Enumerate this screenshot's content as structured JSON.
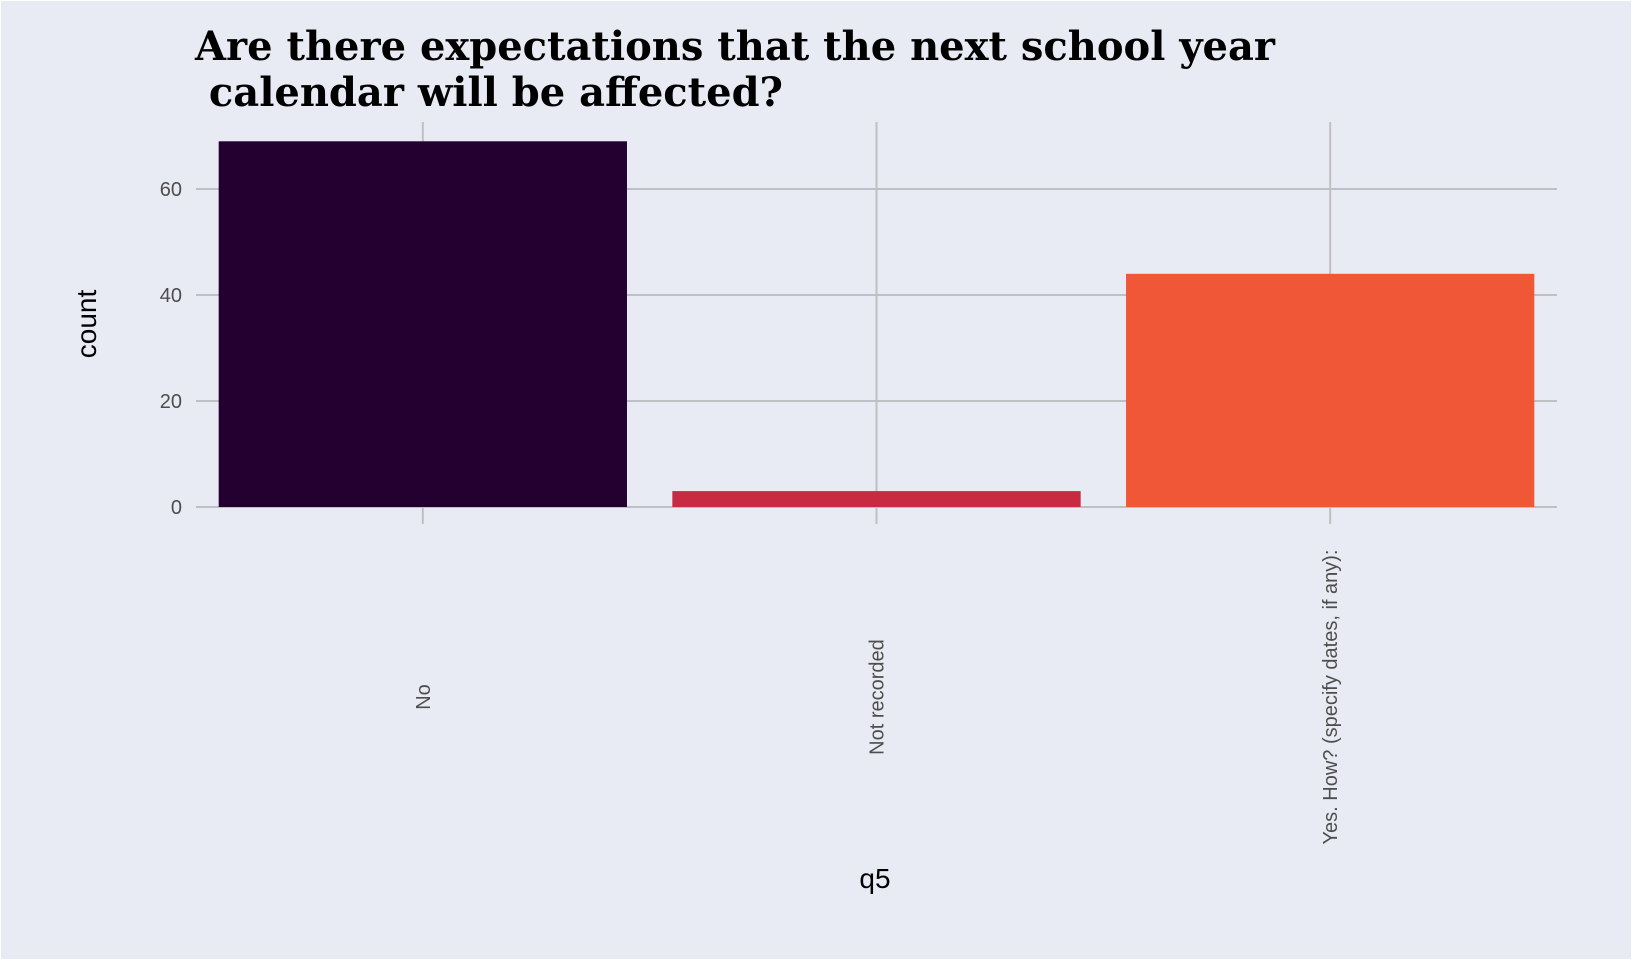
{
  "chart_data": {
    "type": "bar",
    "title_lines": [
      "Are there expectations that the next school year",
      " calendar will be affected?"
    ],
    "xlabel": "q5",
    "ylabel": "count",
    "categories": [
      "No",
      "Not recorded",
      "Yes. How? (specify dates, if any):"
    ],
    "values": [
      69,
      3,
      44
    ],
    "bar_colors": [
      "#240030",
      "#c72a41",
      "#ef5736"
    ],
    "ylim": [
      0,
      72
    ],
    "yticks": [
      0,
      20,
      40,
      60
    ],
    "ytick_labels": [
      "0",
      "20",
      "40",
      "60"
    ],
    "grid": true,
    "legend": "none",
    "background_color": "#e9ebf4"
  }
}
